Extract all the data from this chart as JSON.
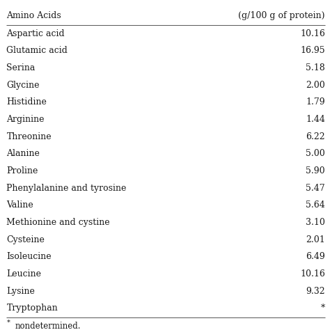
{
  "header": [
    "Amino Acids",
    "(g/100 g of protein)"
  ],
  "rows": [
    [
      "Aspartic acid",
      "10.16"
    ],
    [
      "Glutamic acid",
      "16.95"
    ],
    [
      "Serina",
      "5.18"
    ],
    [
      "Glycine",
      "2.00"
    ],
    [
      "Histidine",
      "1.79"
    ],
    [
      "Arginine",
      "1.44"
    ],
    [
      "Threonine",
      "6.22"
    ],
    [
      "Alanine",
      "5.00"
    ],
    [
      "Proline",
      "5.90"
    ],
    [
      "Phenylalanine and tyrosine",
      "5.47"
    ],
    [
      "Valine",
      "5.64"
    ],
    [
      "Methionine and cystine",
      "3.10"
    ],
    [
      "Cysteine",
      "2.01"
    ],
    [
      "Isoleucine",
      "6.49"
    ],
    [
      "Leucine",
      "10.16"
    ],
    [
      "Lysine",
      "9.32"
    ],
    [
      "Tryptophan",
      "*"
    ]
  ],
  "footnote_super": "*",
  "footnote_text": "nondetermined.",
  "background_color": "#ffffff",
  "text_color": "#1a1a1a",
  "font_size": 9.0,
  "header_font_size": 9.0,
  "footnote_font_size": 8.5,
  "line_color": "#555555",
  "line_width": 0.7
}
